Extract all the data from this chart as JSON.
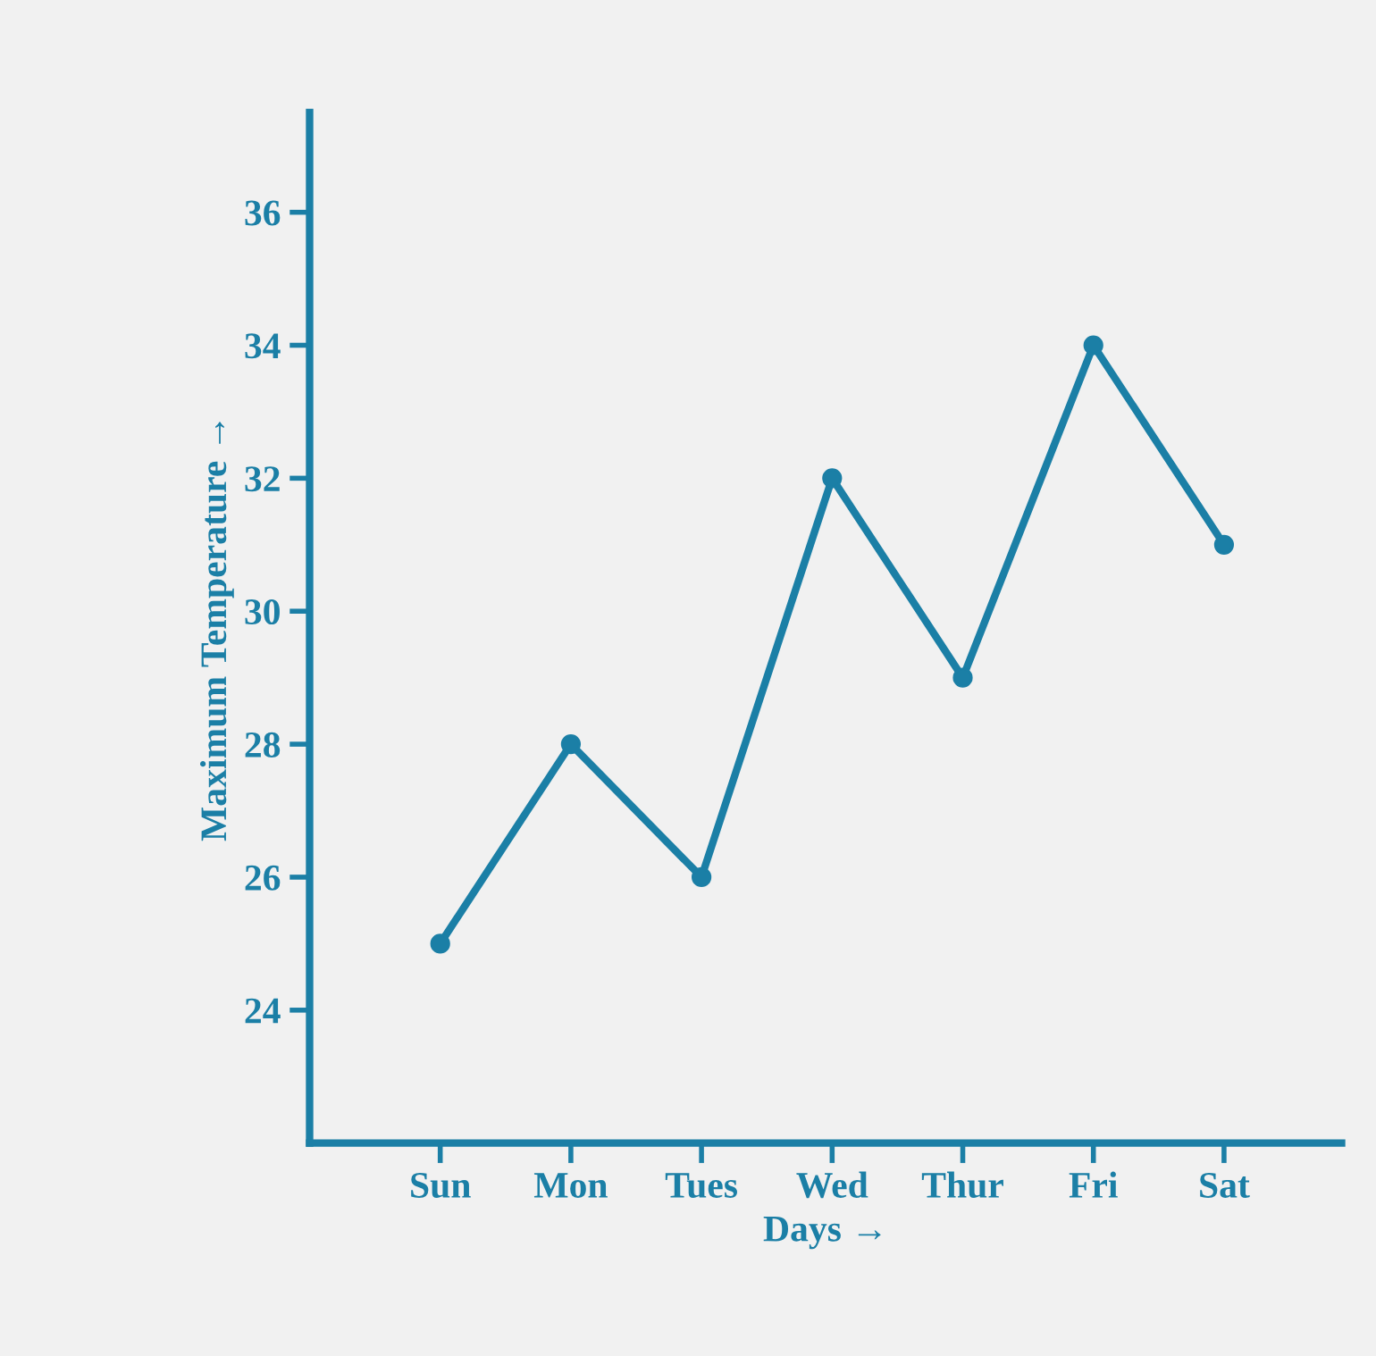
{
  "chart_data": {
    "type": "line",
    "xlabel": "Days →",
    "ylabel": "Maximum Temperature →",
    "categories": [
      "Sun",
      "Mon",
      "Tues",
      "Wed",
      "Thur",
      "Fri",
      "Sat"
    ],
    "series": [
      {
        "color": "#1b7fa6",
        "values": [
          25,
          28,
          26,
          32,
          29,
          34,
          31
        ]
      }
    ],
    "ylim": [
      22,
      37.5
    ],
    "yticks": [
      24,
      26,
      28,
      30,
      32,
      34,
      36
    ],
    "marker": "circle",
    "line_style": "solid",
    "grid": false,
    "legend": false
  }
}
